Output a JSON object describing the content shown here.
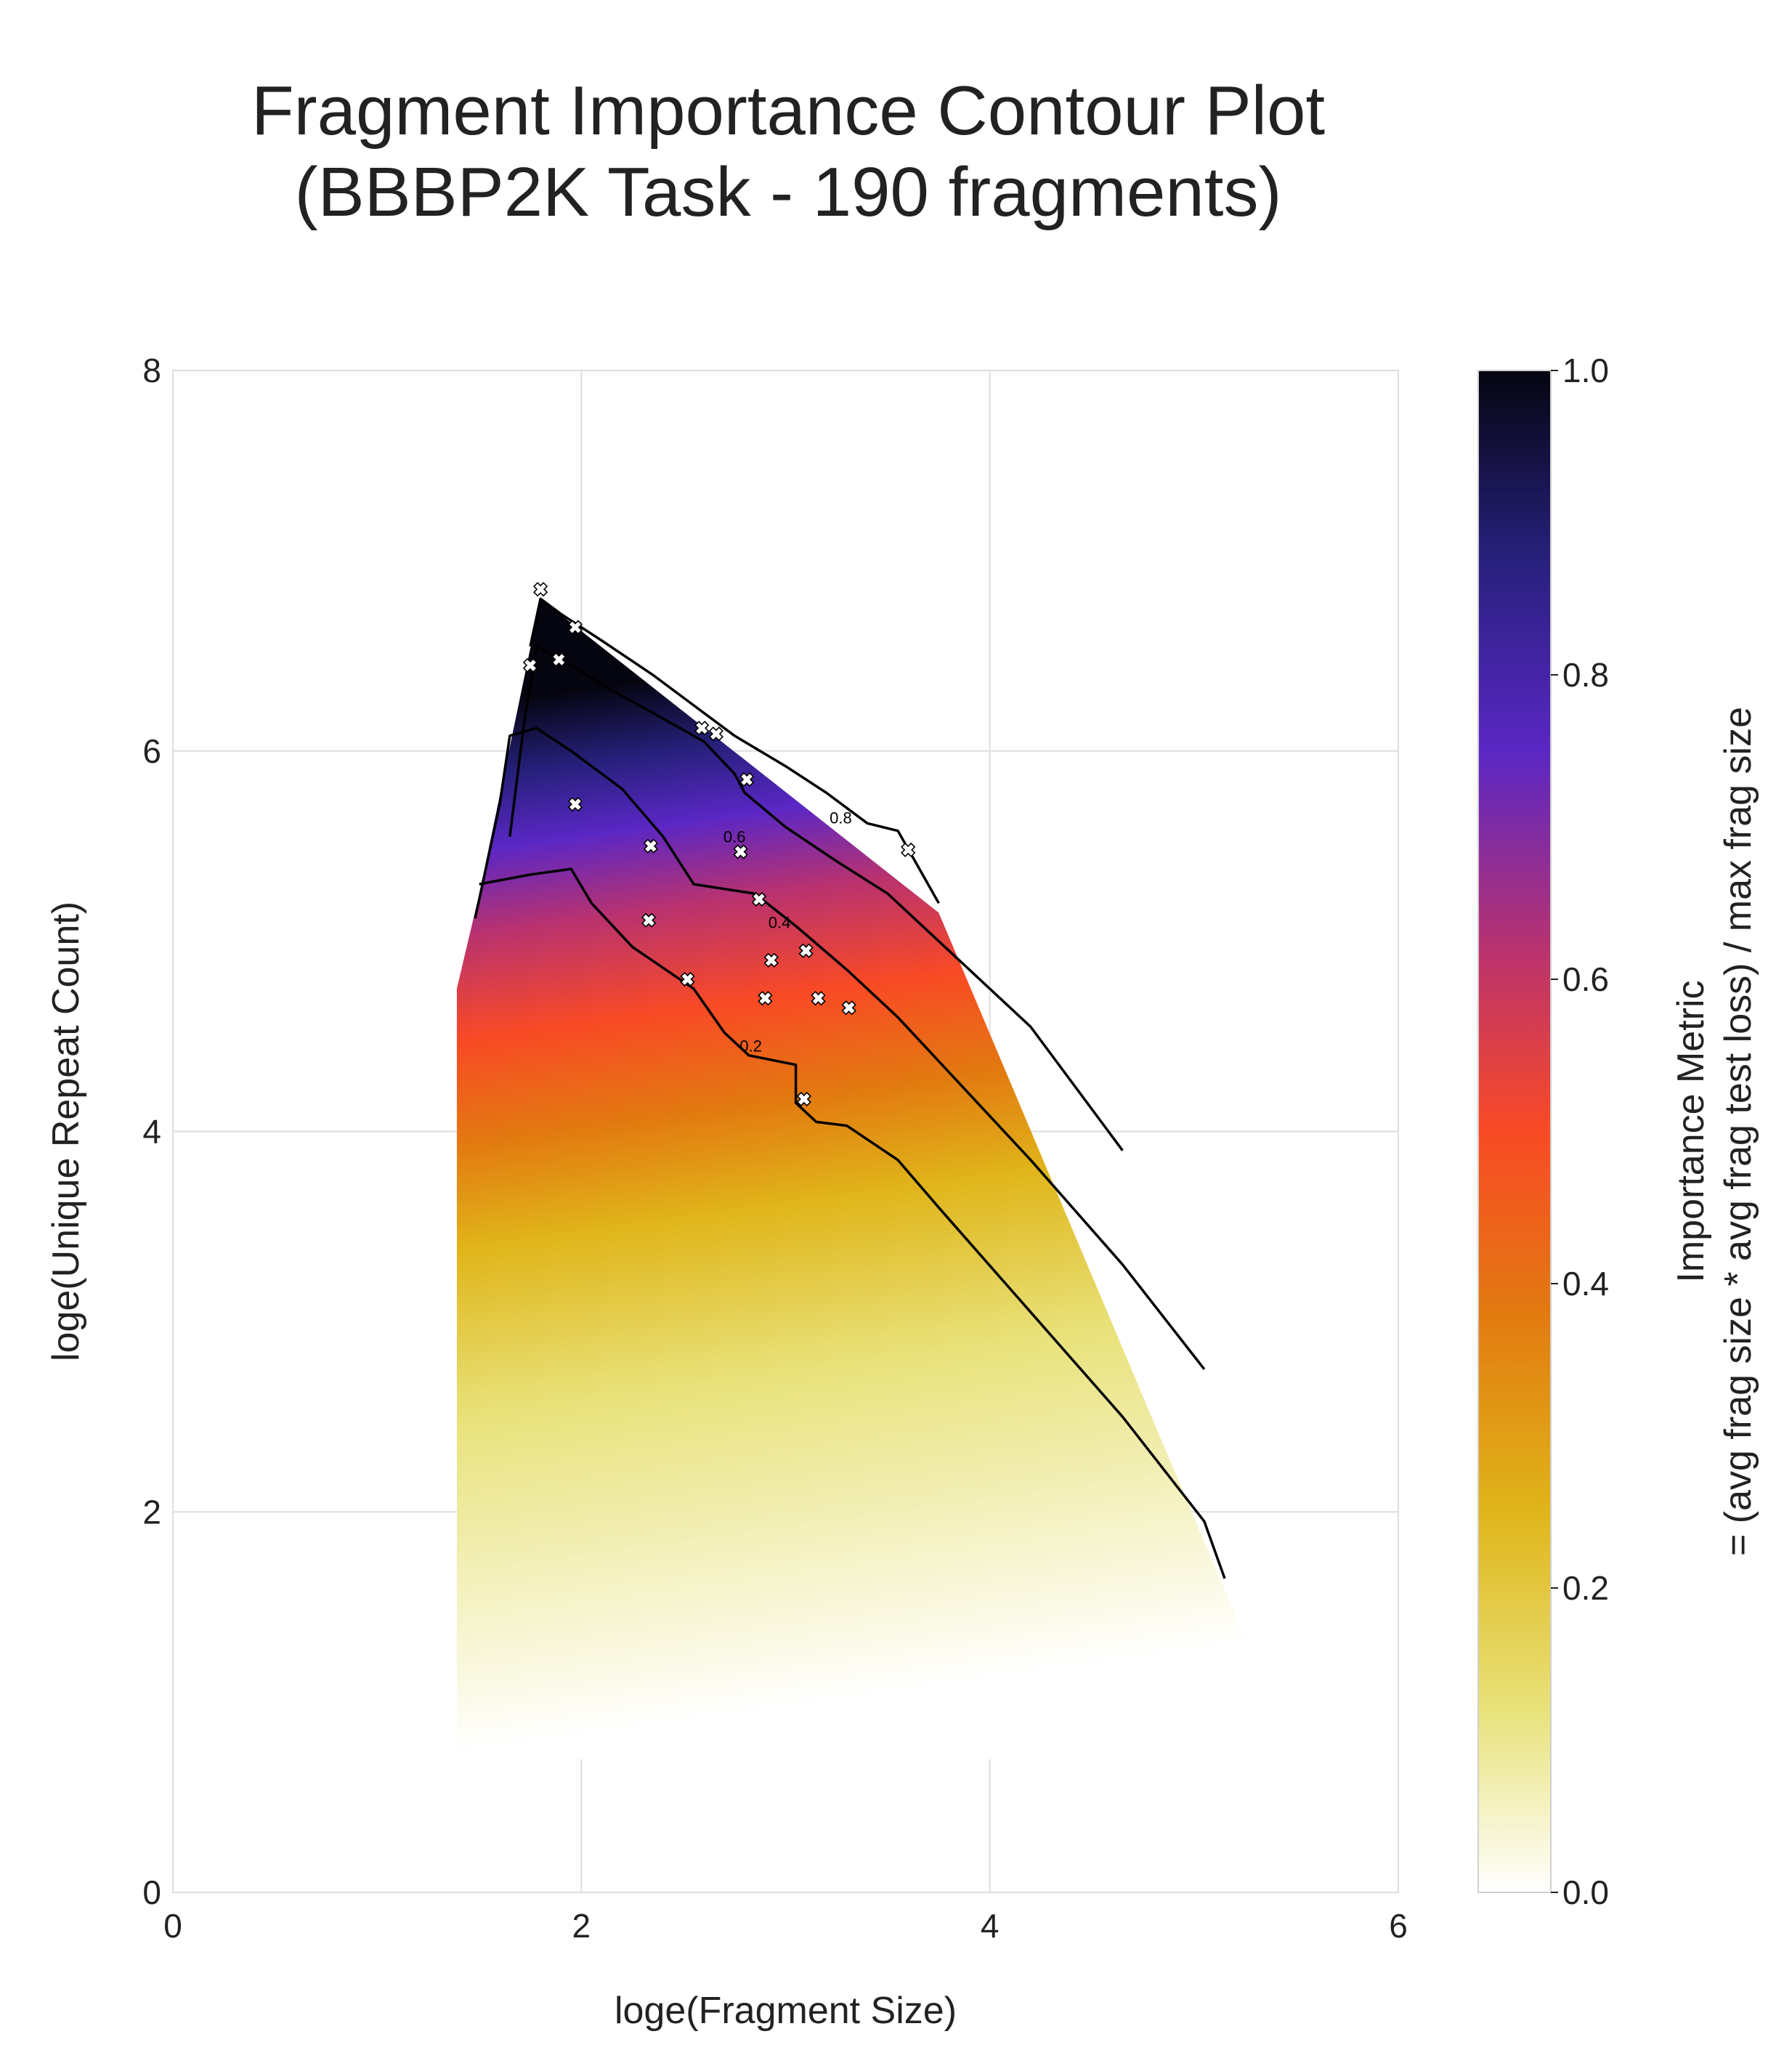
{
  "chart_data": {
    "type": "contour",
    "title": [
      "Fragment Importance Contour Plot",
      "(BBBP2K Task - 190 fragments)"
    ],
    "xlabel": "loge(Fragment Size)",
    "ylabel": "loge(Unique Repeat Count)",
    "xlim": [
      0,
      6
    ],
    "ylim": [
      0,
      8
    ],
    "xticks": [
      "0",
      "2",
      "4",
      "6"
    ],
    "yticks": [
      "0",
      "2",
      "4",
      "6",
      "8"
    ],
    "grid": true,
    "colorbar": {
      "label_line_1": "Importance Metric",
      "label_line_2": "= (avg frag size * avg frag test loss) / max frag size",
      "range": [
        0,
        1
      ],
      "ticks": [
        "0.0",
        "0.2",
        "0.4",
        "0.6",
        "0.8",
        "1.0"
      ],
      "colormap": [
        "#ffffff",
        "#e8e27a",
        "#e0b51a",
        "#e27a10",
        "#f94a25",
        "#b9326f",
        "#5a27c5",
        "#26207a",
        "#050510"
      ]
    },
    "contour_levels": [
      0.2,
      0.4,
      0.6,
      0.8
    ],
    "contour_label_texts": [
      "0.2",
      "0.4",
      "0.6",
      "0.8"
    ],
    "hull": [
      [
        1.39,
        1.85
      ],
      [
        1.39,
        4.75
      ],
      [
        1.5,
        5.25
      ],
      [
        1.8,
        6.8
      ],
      [
        3.75,
        5.15
      ],
      [
        5.5,
        0.7
      ],
      [
        1.39,
        0.7
      ]
    ],
    "contours": [
      {
        "level": 0.2,
        "points": [
          [
            1.5,
            5.3
          ],
          [
            1.75,
            5.35
          ],
          [
            1.95,
            5.38
          ],
          [
            2.05,
            5.2
          ],
          [
            2.25,
            4.97
          ],
          [
            2.55,
            4.75
          ],
          [
            2.7,
            4.52
          ],
          [
            2.82,
            4.4
          ],
          [
            3.05,
            4.35
          ],
          [
            3.05,
            4.15
          ],
          [
            3.15,
            4.05
          ],
          [
            3.3,
            4.03
          ],
          [
            3.55,
            3.85
          ],
          [
            3.75,
            3.6
          ],
          [
            4.2,
            3.05
          ],
          [
            4.65,
            2.5
          ],
          [
            5.05,
            1.95
          ],
          [
            5.15,
            1.65
          ]
        ]
      },
      {
        "level": 0.4,
        "points": [
          [
            1.48,
            5.12
          ],
          [
            1.6,
            5.72
          ],
          [
            1.65,
            6.08
          ],
          [
            1.78,
            6.12
          ],
          [
            1.95,
            6.0
          ],
          [
            2.2,
            5.8
          ],
          [
            2.4,
            5.55
          ],
          [
            2.55,
            5.3
          ],
          [
            2.85,
            5.25
          ],
          [
            3.05,
            5.08
          ],
          [
            3.3,
            4.85
          ],
          [
            3.55,
            4.6
          ],
          [
            4.2,
            3.85
          ],
          [
            4.65,
            3.3
          ],
          [
            5.05,
            2.75
          ]
        ]
      },
      {
        "level": 0.6,
        "points": [
          [
            1.65,
            5.55
          ],
          [
            1.72,
            6.15
          ],
          [
            1.78,
            6.55
          ],
          [
            1.95,
            6.45
          ],
          [
            2.1,
            6.35
          ],
          [
            2.35,
            6.2
          ],
          [
            2.6,
            6.05
          ],
          [
            2.75,
            5.88
          ],
          [
            2.8,
            5.78
          ],
          [
            3.0,
            5.6
          ],
          [
            3.25,
            5.42
          ],
          [
            3.5,
            5.25
          ],
          [
            4.2,
            4.55
          ],
          [
            4.65,
            3.9
          ]
        ]
      },
      {
        "level": 0.8,
        "points": [
          [
            1.75,
            6.55
          ],
          [
            1.8,
            6.8
          ],
          [
            1.9,
            6.72
          ],
          [
            2.1,
            6.58
          ],
          [
            2.35,
            6.4
          ],
          [
            2.6,
            6.2
          ],
          [
            2.75,
            6.08
          ],
          [
            3.0,
            5.92
          ],
          [
            3.2,
            5.78
          ],
          [
            3.4,
            5.62
          ],
          [
            3.55,
            5.58
          ],
          [
            3.75,
            5.2
          ]
        ]
      }
    ],
    "contour_label_positions": [
      [
        2.83,
        4.45
      ],
      [
        2.97,
        5.1
      ],
      [
        2.75,
        5.55
      ],
      [
        3.27,
        5.65
      ]
    ],
    "scatter": {
      "marker": "x",
      "x": [
        1.8,
        1.97,
        1.75,
        1.89,
        2.59,
        2.66,
        2.81,
        1.97,
        2.34,
        3.6,
        2.78,
        2.87,
        2.33,
        3.1,
        2.93,
        2.52,
        2.9,
        3.16,
        3.31,
        3.09
      ],
      "y": [
        6.85,
        6.65,
        6.45,
        6.48,
        6.12,
        6.09,
        5.85,
        5.72,
        5.5,
        5.48,
        5.47,
        5.22,
        5.11,
        4.95,
        4.9,
        4.8,
        4.7,
        4.7,
        4.65,
        4.17
      ]
    }
  }
}
